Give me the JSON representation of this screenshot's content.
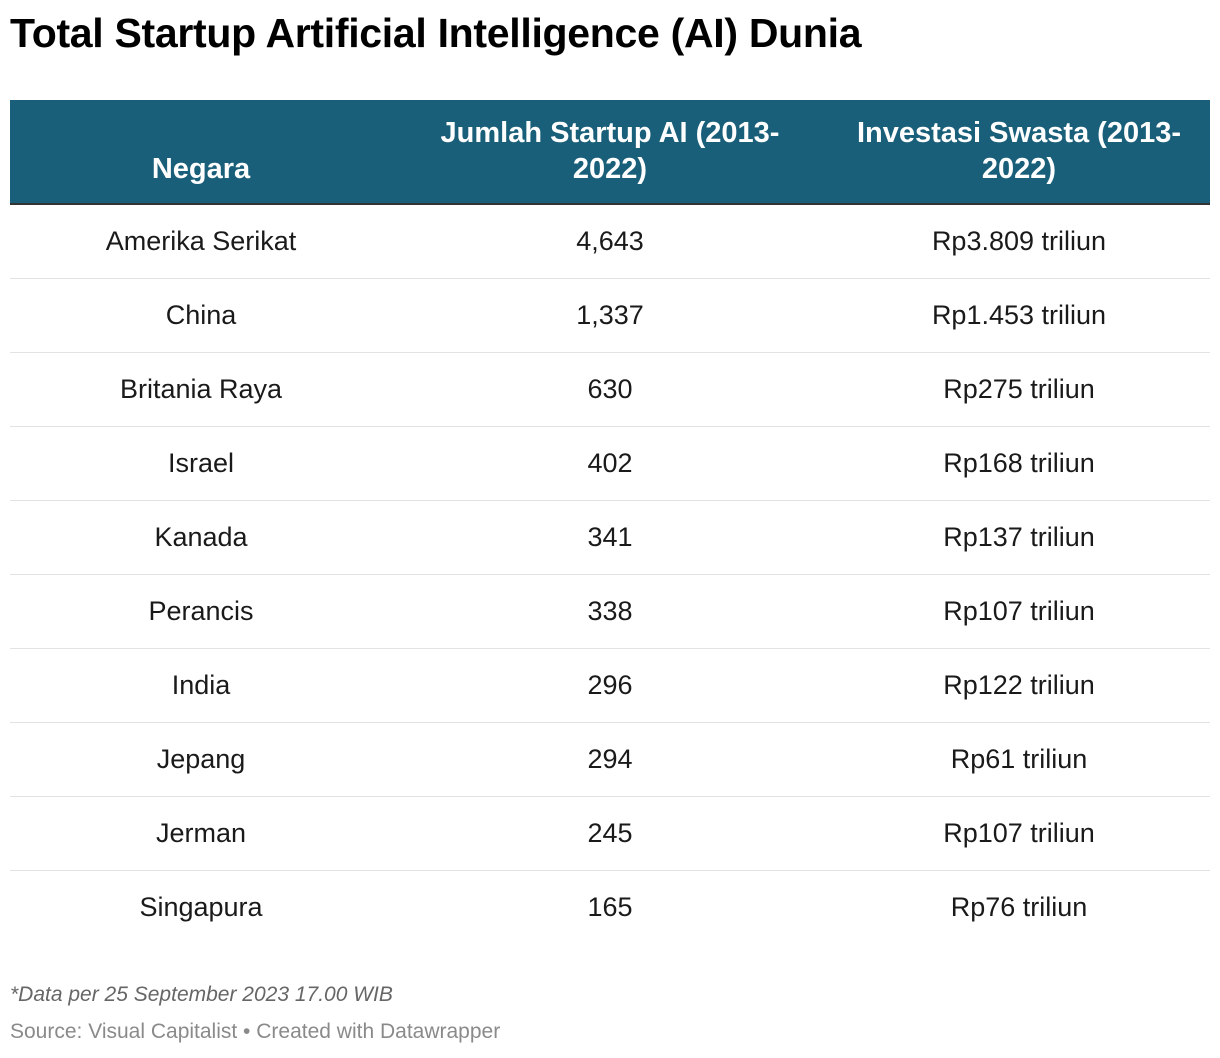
{
  "title": "Total Startup Artificial Intelligence (AI) Dunia",
  "colors": {
    "header_background": "#1a5f7a",
    "header_text": "#ffffff",
    "row_divider": "#e2e2e2"
  },
  "chart_data": {
    "type": "table",
    "title": "Total Startup Artificial Intelligence (AI) Dunia",
    "columns": [
      "Negara",
      "Jumlah Startup AI (2013-2022)",
      "Investasi Swasta (2013-2022)"
    ],
    "rows": [
      [
        "Amerika Serikat",
        "4,643",
        "Rp3.809 triliun"
      ],
      [
        "China",
        "1,337",
        "Rp1.453 triliun"
      ],
      [
        "Britania Raya",
        "630",
        "Rp275 triliun"
      ],
      [
        "Israel",
        "402",
        "Rp168 triliun"
      ],
      [
        "Kanada",
        "341",
        "Rp137 triliun"
      ],
      [
        "Perancis",
        "338",
        "Rp107 triliun"
      ],
      [
        "India",
        "296",
        "Rp122 triliun"
      ],
      [
        "Jepang",
        "294",
        "Rp61 triliun"
      ],
      [
        "Jerman",
        "245",
        "Rp107 triliun"
      ],
      [
        "Singapura",
        "165",
        "Rp76 triliun"
      ]
    ]
  },
  "footer": {
    "note": "*Data per 25 September 2023 17.00 WIB",
    "source": "Source: Visual Capitalist • Created with Datawrapper"
  }
}
